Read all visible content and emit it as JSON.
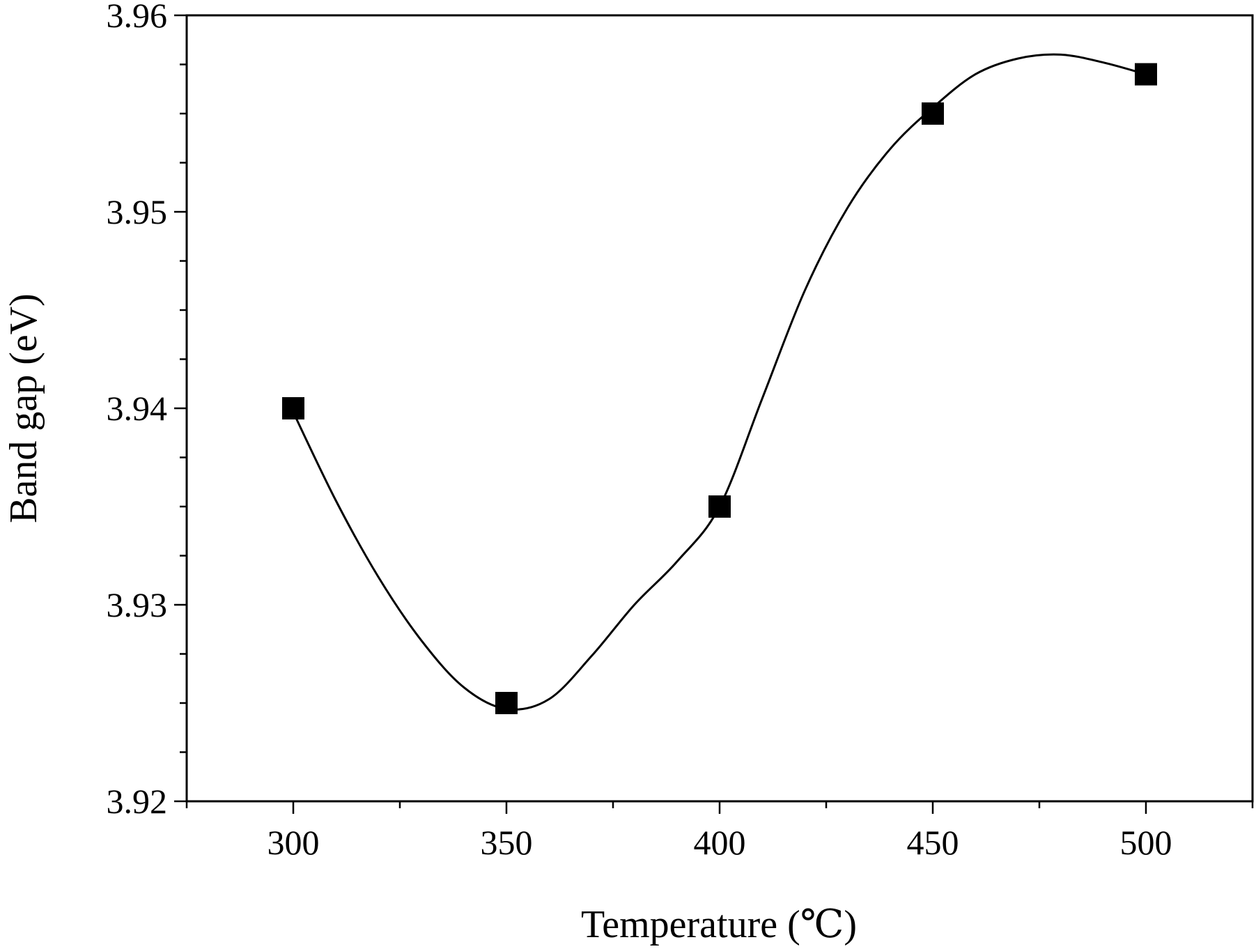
{
  "chart_data": {
    "type": "scatter",
    "xlabel": "Temperature (℃)",
    "ylabel": "Band gap (eV)",
    "xlim": [
      275,
      525
    ],
    "ylim": [
      3.92,
      3.96
    ],
    "x_ticks": [
      300,
      350,
      400,
      450,
      500
    ],
    "x_tick_labels": [
      "300",
      "350",
      "400",
      "450",
      "500"
    ],
    "x_minor_ticks": [
      275,
      325,
      375,
      425,
      475,
      525
    ],
    "y_ticks": [
      3.92,
      3.93,
      3.94,
      3.95,
      3.96
    ],
    "y_tick_labels": [
      "3.92",
      "3.93",
      "3.94",
      "3.95",
      "3.96"
    ],
    "y_minor_step": 0.0025,
    "grid": false,
    "series": [
      {
        "x": [
          300,
          350,
          400,
          450,
          500
        ],
        "y": [
          3.94,
          3.925,
          3.935,
          3.955,
          3.957
        ],
        "marker": "square",
        "line": "smooth-spline",
        "color": "#000000"
      }
    ],
    "curve_samples": {
      "x": [
        300,
        310,
        320,
        330,
        340,
        350,
        360,
        370,
        380,
        390,
        400,
        410,
        420,
        430,
        440,
        450,
        460,
        470,
        480,
        490,
        500
      ],
      "y": [
        3.9398,
        3.9353,
        3.9314,
        3.9282,
        3.9258,
        3.9247,
        3.9252,
        3.9274,
        3.93,
        3.9322,
        3.935,
        3.9405,
        3.946,
        3.9502,
        3.9532,
        3.9553,
        3.957,
        3.9578,
        3.958,
        3.9576,
        3.957
      ]
    }
  }
}
